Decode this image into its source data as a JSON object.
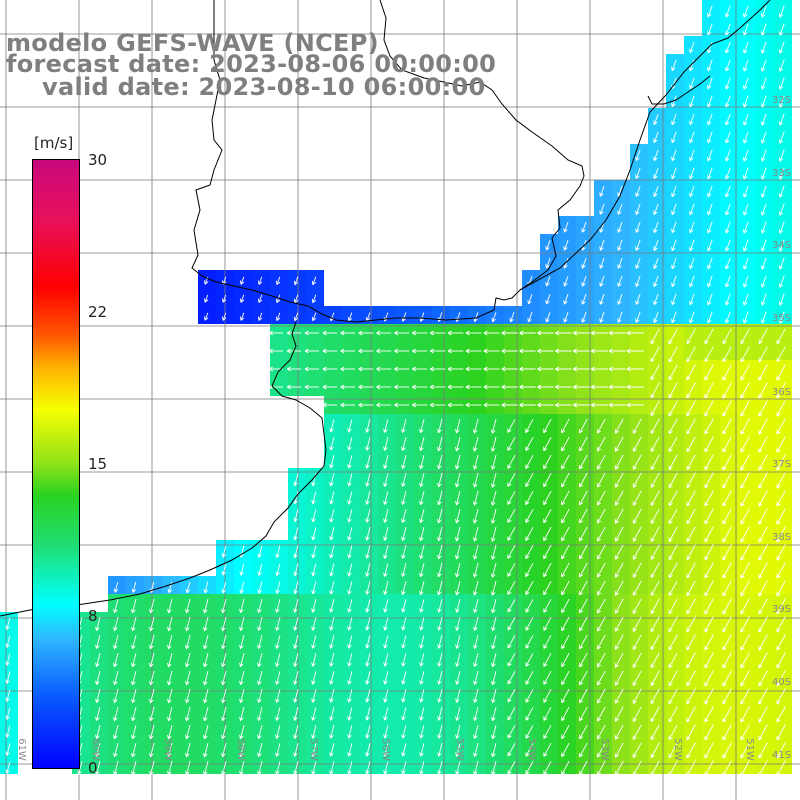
{
  "titles": {
    "model": "modelo GEFS-WAVE (NCEP)",
    "forecast": "forecast date: 2023-08-06 00:00:00",
    "valid": "valid date: 2023-08-10 06:00:00"
  },
  "colorbar": {
    "unit": "[m/s]",
    "ticks": [
      "30",
      "22",
      "15",
      "8",
      "0"
    ]
  },
  "grid_labels": {
    "latitudes": [
      "32S",
      "33S",
      "34S",
      "35S",
      "36S",
      "37S",
      "38S",
      "39S",
      "40S",
      "41S"
    ],
    "longitudes": [
      "61W",
      "60W",
      "59W",
      "58W",
      "57W",
      "56W",
      "55W",
      "54W",
      "53W",
      "52W",
      "51W"
    ]
  },
  "colors": {
    "coast": "#000000",
    "grid": "#7a7a7a",
    "arrows": "#ffffff",
    "title": "#7f7f7f"
  }
}
